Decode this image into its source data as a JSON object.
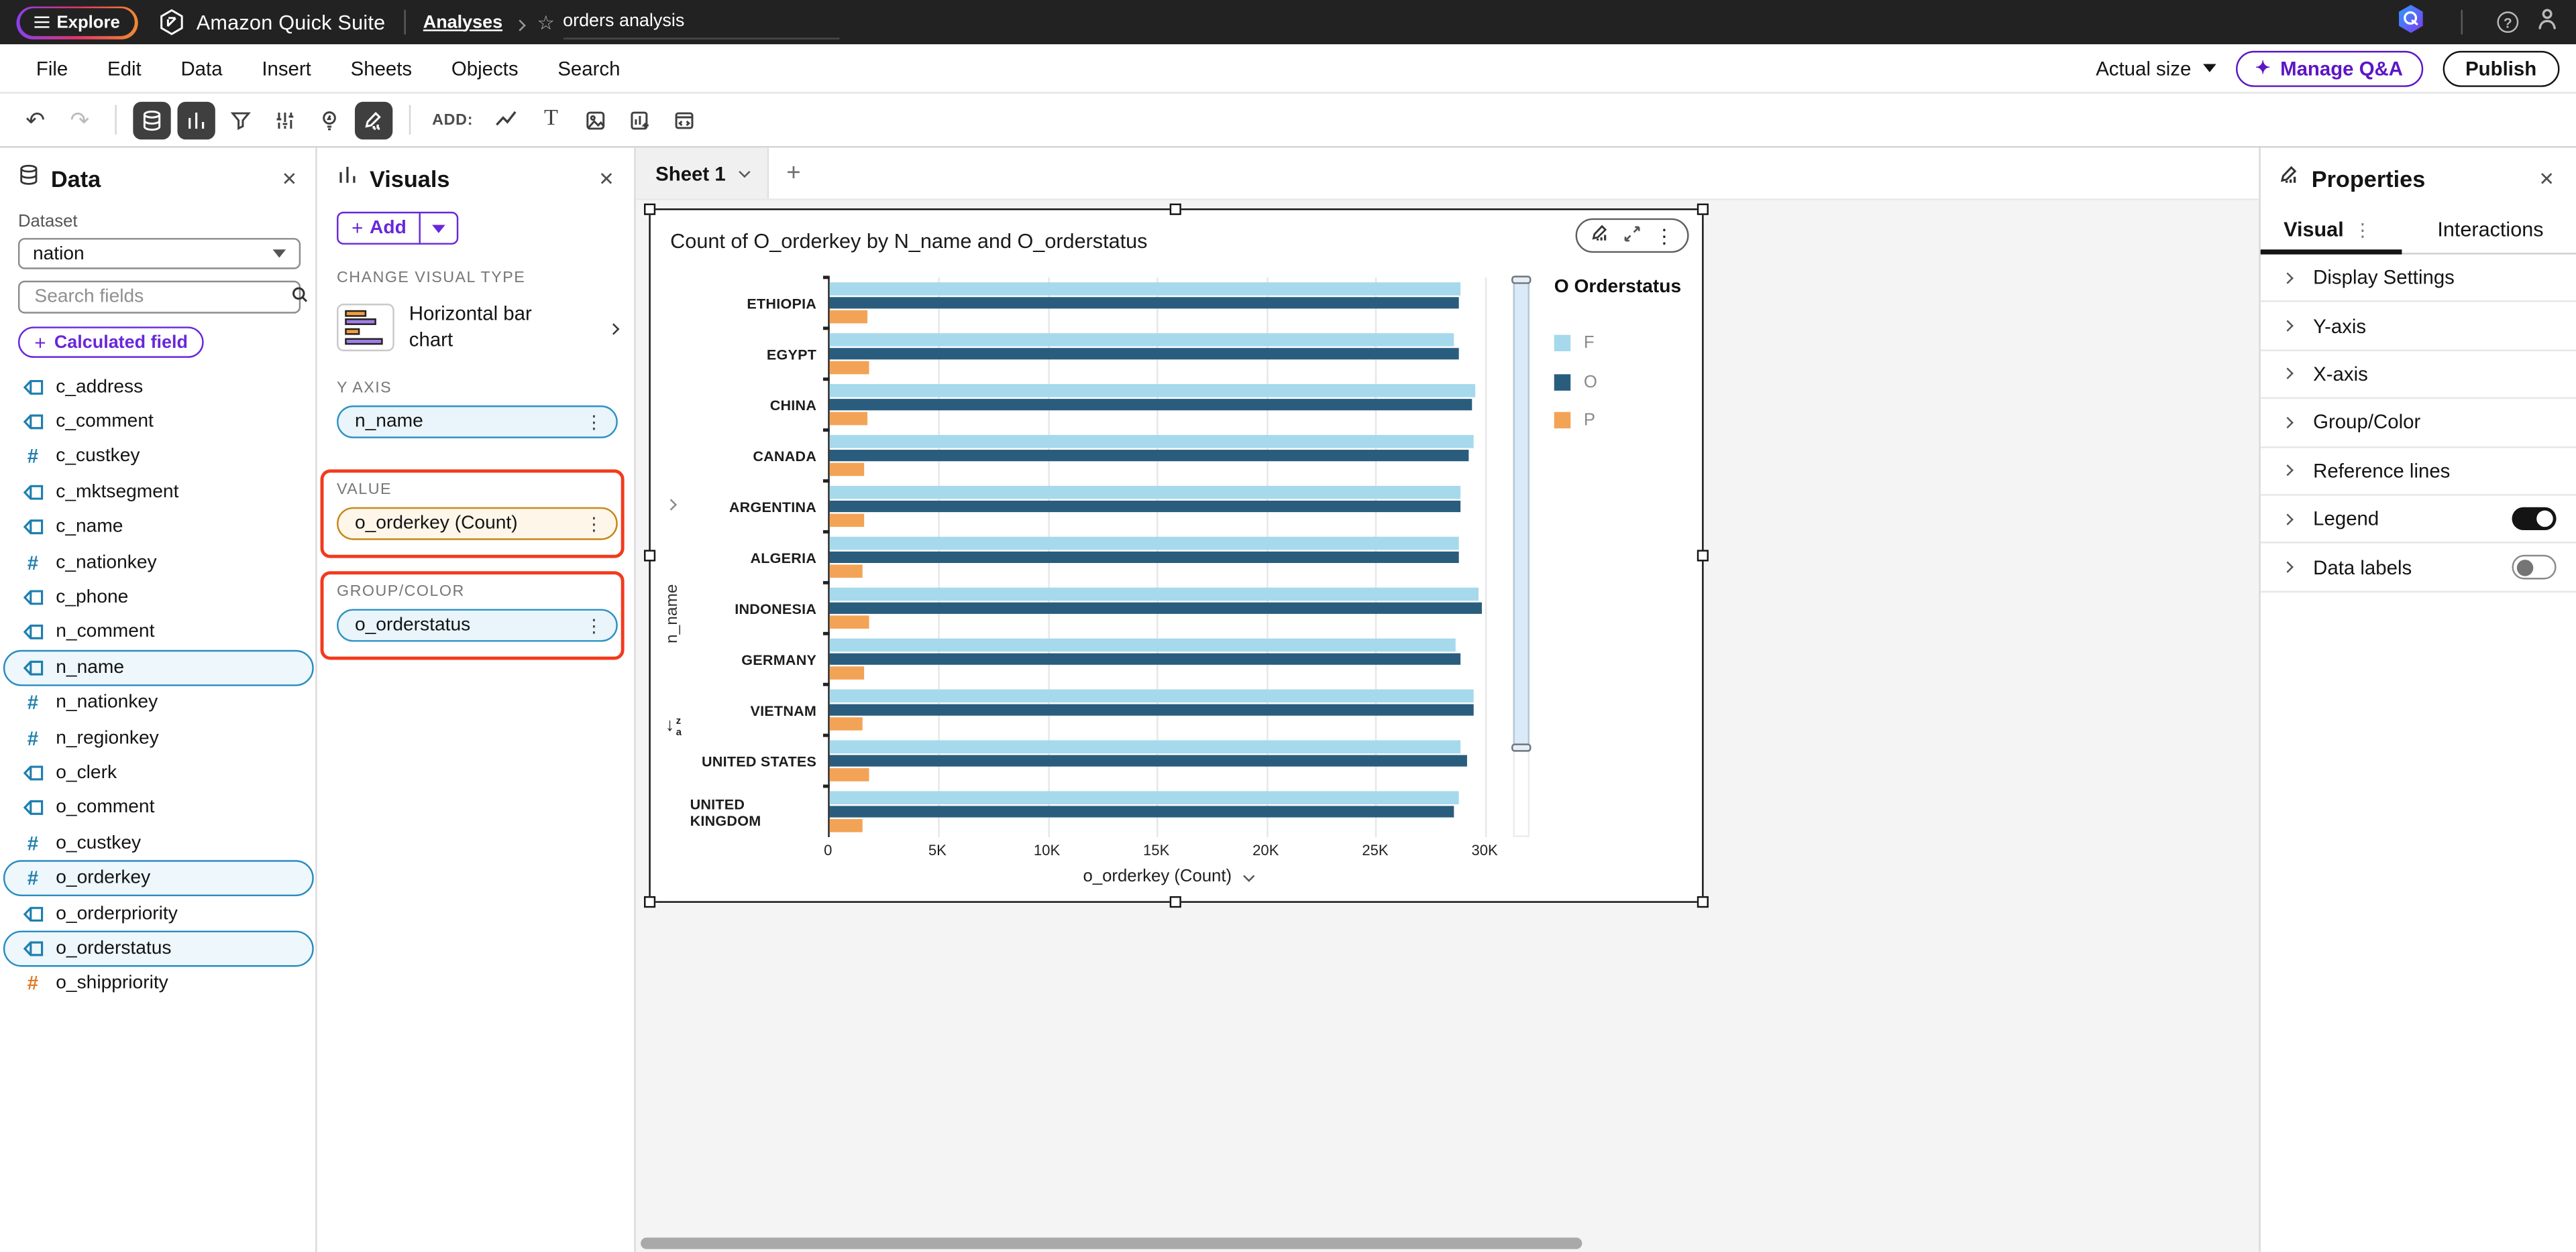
{
  "topbar": {
    "explore_label": "Explore",
    "product_name": "Amazon Quick Suite",
    "breadcrumb": {
      "analyses": "Analyses",
      "current": "orders analysis"
    }
  },
  "menubar": {
    "items": [
      "File",
      "Edit",
      "Data",
      "Insert",
      "Sheets",
      "Objects",
      "Search"
    ],
    "zoom_label": "Actual size",
    "manage_qa_label": "Manage Q&A",
    "publish_label": "Publish"
  },
  "toolbar": {
    "add_label": "ADD:"
  },
  "data_panel": {
    "title": "Data",
    "dataset_label": "Dataset",
    "dataset_value": "nation",
    "search_placeholder": "Search fields",
    "calculated_field_label": "Calculated field",
    "fields": [
      {
        "name": "c_address",
        "type": "string",
        "selected": false
      },
      {
        "name": "c_comment",
        "type": "string",
        "selected": false
      },
      {
        "name": "c_custkey",
        "type": "number",
        "selected": false
      },
      {
        "name": "c_mktsegment",
        "type": "string",
        "selected": false
      },
      {
        "name": "c_name",
        "type": "string",
        "selected": false
      },
      {
        "name": "c_nationkey",
        "type": "number",
        "selected": false
      },
      {
        "name": "c_phone",
        "type": "string",
        "selected": false
      },
      {
        "name": "n_comment",
        "type": "string",
        "selected": false
      },
      {
        "name": "n_name",
        "type": "string",
        "selected": true
      },
      {
        "name": "n_nationkey",
        "type": "number",
        "selected": false
      },
      {
        "name": "n_regionkey",
        "type": "number",
        "selected": false
      },
      {
        "name": "o_clerk",
        "type": "string",
        "selected": false
      },
      {
        "name": "o_comment",
        "type": "string",
        "selected": false
      },
      {
        "name": "o_custkey",
        "type": "number",
        "selected": false
      },
      {
        "name": "o_orderkey",
        "type": "number",
        "selected": true
      },
      {
        "name": "o_orderpriority",
        "type": "string",
        "selected": false
      },
      {
        "name": "o_orderstatus",
        "type": "string",
        "selected": true
      },
      {
        "name": "o_shippriority",
        "type": "number",
        "selected": false,
        "accent": "orange"
      }
    ]
  },
  "visuals_panel": {
    "title": "Visuals",
    "add_label": "Add",
    "change_visual_type_label": "CHANGE VISUAL TYPE",
    "visual_type_name": "Horizontal bar chart",
    "wells": [
      {
        "label": "Y AXIS",
        "value": "n_name",
        "style": "dimension",
        "annotated": false
      },
      {
        "label": "VALUE",
        "value": "o_orderkey (Count)",
        "style": "measure",
        "annotated": true
      },
      {
        "label": "GROUP/COLOR",
        "value": "o_orderstatus",
        "style": "dimension",
        "annotated": true
      }
    ]
  },
  "canvas": {
    "sheet_tab": "Sheet 1",
    "add_tab_label": "+"
  },
  "chart_data": {
    "type": "bar",
    "orientation": "horizontal",
    "title": "Count of O_orderkey by N_name and O_orderstatus",
    "categories": [
      "ETHIOPIA",
      "EGYPT",
      "CHINA",
      "CANADA",
      "ARGENTINA",
      "ALGERIA",
      "INDONESIA",
      "GERMANY",
      "VIETNAM",
      "UNITED STATES",
      "UNITED KINGDOM"
    ],
    "series": [
      {
        "name": "F",
        "color": "#a6d9ec",
        "values": [
          28900,
          28600,
          29600,
          29500,
          28900,
          28800,
          29700,
          28700,
          29500,
          28900,
          28800
        ]
      },
      {
        "name": "O",
        "color": "#2a5d7d",
        "values": [
          28800,
          28800,
          29400,
          29300,
          28900,
          28800,
          29900,
          28900,
          29500,
          29200,
          28600
        ]
      },
      {
        "name": "P",
        "color": "#f3a356",
        "values": [
          1700,
          1800,
          1700,
          1600,
          1600,
          1500,
          1800,
          1600,
          1500,
          1800,
          1500
        ]
      }
    ],
    "xlabel": "o_orderkey (Count)",
    "ylabel": "n_name",
    "x_ticks": [
      "0",
      "5K",
      "10K",
      "15K",
      "20K",
      "25K",
      "30K"
    ],
    "x_tick_values": [
      0,
      5000,
      10000,
      15000,
      20000,
      25000,
      30000
    ],
    "xlim": [
      0,
      31000
    ],
    "legend_title": "O Orderstatus",
    "legend_position": "right",
    "grid": true
  },
  "properties": {
    "title": "Properties",
    "tabs": [
      "Visual",
      "Interactions"
    ],
    "active_tab": "Visual",
    "sections": [
      {
        "label": "Display Settings",
        "toggle": null
      },
      {
        "label": "Y-axis",
        "toggle": null
      },
      {
        "label": "X-axis",
        "toggle": null
      },
      {
        "label": "Group/Color",
        "toggle": null
      },
      {
        "label": "Reference lines",
        "toggle": null
      },
      {
        "label": "Legend",
        "toggle": "on"
      },
      {
        "label": "Data labels",
        "toggle": "off"
      }
    ]
  },
  "colors": {
    "accent_purple": "#6927da",
    "annotation_red": "#f23a1d",
    "series_f": "#a6d9ec",
    "series_o": "#2a5d7d",
    "series_p": "#f3a356",
    "field_blue": "#1f7fae",
    "field_orange": "#e07b27"
  }
}
